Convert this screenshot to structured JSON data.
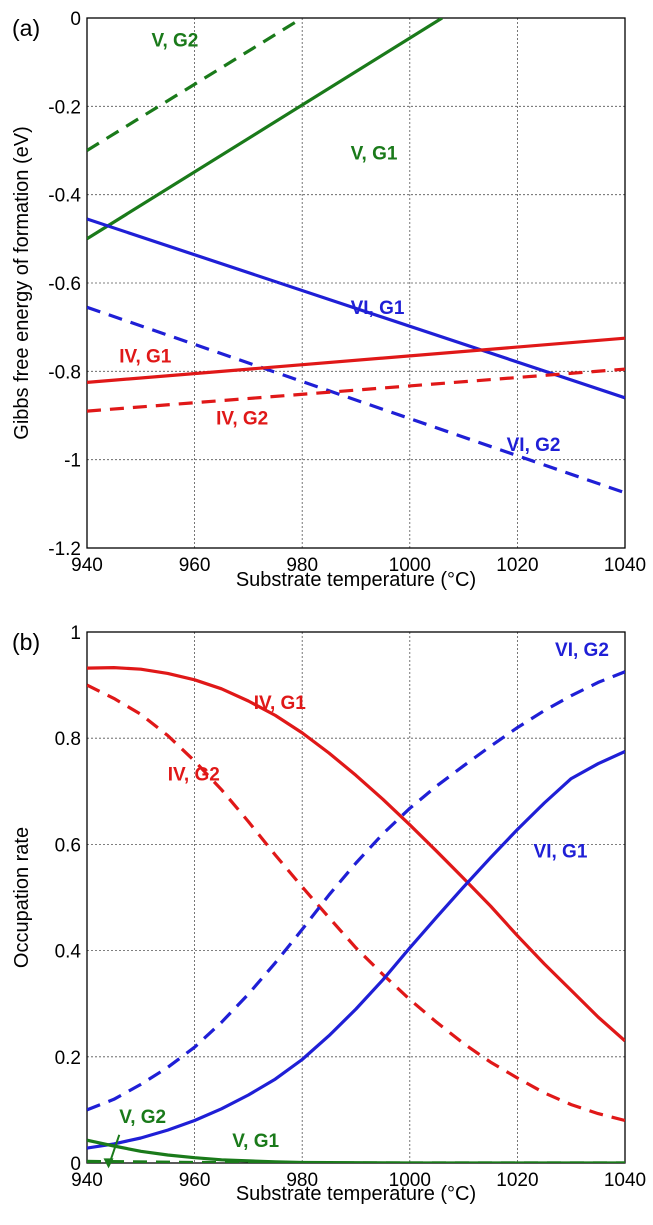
{
  "chart_data": [
    {
      "type": "line",
      "panel_label": "(a)",
      "xlabel": "Substrate temperature (°C)",
      "ylabel": "Gibbs free energy of formation (eV)",
      "xlim": [
        940,
        1040
      ],
      "ylim": [
        -1.2,
        0
      ],
      "xticks": [
        940,
        960,
        980,
        1000,
        1020,
        1040
      ],
      "yticks": [
        0,
        -0.2,
        -0.4,
        -0.6,
        -0.8,
        -1,
        -1.2
      ],
      "ytick_labels": [
        "0",
        "-0.2",
        "-0.4",
        "-0.6",
        "-0.8",
        "-1",
        "-1.2"
      ],
      "grid": true,
      "series": [
        {
          "name": "V, G2",
          "color": "#1a7a1a",
          "dash": true,
          "x": [
            940,
            980
          ],
          "y": [
            -0.3,
            0.0
          ]
        },
        {
          "name": "V, G1",
          "color": "#1a7a1a",
          "dash": false,
          "x": [
            940,
            1006
          ],
          "y": [
            -0.5,
            0.0
          ]
        },
        {
          "name": "VI, G1",
          "color": "#1f1fd6",
          "dash": false,
          "x": [
            940,
            1040
          ],
          "y": [
            -0.455,
            -0.86
          ]
        },
        {
          "name": "VI, G2",
          "color": "#1f1fd6",
          "dash": true,
          "x": [
            940,
            1040
          ],
          "y": [
            -0.655,
            -1.075
          ]
        },
        {
          "name": "IV, G1",
          "color": "#e01818",
          "dash": false,
          "x": [
            940,
            1040
          ],
          "y": [
            -0.825,
            -0.725
          ]
        },
        {
          "name": "IV, G2",
          "color": "#e01818",
          "dash": true,
          "x": [
            940,
            1040
          ],
          "y": [
            -0.89,
            -0.795
          ]
        }
      ],
      "annotations": [
        {
          "text": "V, G2",
          "color": "#1a7a1a",
          "x": 952,
          "y": -0.065
        },
        {
          "text": "V, G1",
          "color": "#1a7a1a",
          "x": 989,
          "y": -0.32
        },
        {
          "text": "VI, G1",
          "color": "#1f1fd6",
          "x": 989,
          "y": -0.67
        },
        {
          "text": "IV, G1",
          "color": "#e01818",
          "x": 946,
          "y": -0.78
        },
        {
          "text": "IV, G2",
          "color": "#e01818",
          "x": 964,
          "y": -0.92
        },
        {
          "text": "VI, G2",
          "color": "#1f1fd6",
          "x": 1018,
          "y": -0.98
        }
      ]
    },
    {
      "type": "line",
      "panel_label": "(b)",
      "xlabel": "Substrate temperature (°C)",
      "ylabel": "Occupation rate",
      "xlim": [
        940,
        1040
      ],
      "ylim": [
        0,
        1
      ],
      "xticks": [
        940,
        960,
        980,
        1000,
        1020,
        1040
      ],
      "yticks": [
        0,
        0.2,
        0.4,
        0.6,
        0.8,
        1
      ],
      "ytick_labels": [
        "0",
        "0.2",
        "0.4",
        "0.6",
        "0.8",
        "1"
      ],
      "grid": true,
      "series": [
        {
          "name": "IV, G1",
          "color": "#e01818",
          "dash": false,
          "x": [
            940,
            945,
            950,
            955,
            960,
            965,
            970,
            975,
            980,
            985,
            990,
            995,
            1000,
            1005,
            1010,
            1015,
            1020,
            1025,
            1030,
            1035,
            1040
          ],
          "y": [
            0.932,
            0.933,
            0.93,
            0.922,
            0.91,
            0.893,
            0.87,
            0.843,
            0.81,
            0.772,
            0.73,
            0.685,
            0.637,
            0.587,
            0.536,
            0.484,
            0.428,
            0.375,
            0.325,
            0.275,
            0.23
          ]
        },
        {
          "name": "IV, G2",
          "color": "#e01818",
          "dash": true,
          "x": [
            940,
            945,
            950,
            955,
            960,
            965,
            970,
            975,
            980,
            985,
            990,
            995,
            1000,
            1005,
            1010,
            1015,
            1020,
            1025,
            1030,
            1035,
            1040
          ],
          "y": [
            0.9,
            0.875,
            0.845,
            0.805,
            0.757,
            0.703,
            0.643,
            0.58,
            0.52,
            0.462,
            0.405,
            0.355,
            0.308,
            0.265,
            0.225,
            0.19,
            0.16,
            0.132,
            0.11,
            0.093,
            0.08
          ]
        },
        {
          "name": "VI, G2",
          "color": "#1f1fd6",
          "dash": true,
          "x": [
            940,
            945,
            950,
            955,
            960,
            965,
            970,
            975,
            980,
            985,
            990,
            995,
            1000,
            1005,
            1010,
            1015,
            1020,
            1025,
            1030,
            1035,
            1040
          ],
          "y": [
            0.1,
            0.12,
            0.148,
            0.18,
            0.218,
            0.265,
            0.318,
            0.377,
            0.44,
            0.505,
            0.565,
            0.62,
            0.668,
            0.71,
            0.748,
            0.785,
            0.82,
            0.852,
            0.88,
            0.905,
            0.925
          ]
        },
        {
          "name": "VI, G1",
          "color": "#1f1fd6",
          "dash": false,
          "x": [
            940,
            945,
            950,
            955,
            960,
            965,
            970,
            975,
            980,
            985,
            990,
            995,
            1000,
            1005,
            1010,
            1015,
            1020,
            1025,
            1030,
            1035,
            1040
          ],
          "y": [
            0.028,
            0.036,
            0.047,
            0.062,
            0.08,
            0.102,
            0.128,
            0.158,
            0.195,
            0.24,
            0.29,
            0.345,
            0.405,
            0.463,
            0.52,
            0.575,
            0.628,
            0.678,
            0.724,
            0.752,
            0.775
          ]
        },
        {
          "name": "V, G1",
          "color": "#1a7a1a",
          "dash": false,
          "x": [
            940,
            945,
            950,
            955,
            960,
            965,
            970,
            975,
            980,
            990,
            1000,
            1020,
            1040
          ],
          "y": [
            0.043,
            0.032,
            0.022,
            0.015,
            0.01,
            0.006,
            0.004,
            0.002,
            0.001,
            0.0005,
            0,
            0,
            0
          ]
        },
        {
          "name": "V, G2",
          "color": "#1a7a1a",
          "dash": true,
          "x": [
            940,
            960,
            980,
            1000,
            1020,
            1040
          ],
          "y": [
            0.003,
            0.001,
            0,
            0,
            0,
            0
          ]
        }
      ],
      "annotations": [
        {
          "text": "IV, G1",
          "color": "#e01818",
          "x": 971,
          "y": 0.855
        },
        {
          "text": "IV, G2",
          "color": "#e01818",
          "x": 955,
          "y": 0.72
        },
        {
          "text": "VI, G2",
          "color": "#1f1fd6",
          "x": 1027,
          "y": 0.955
        },
        {
          "text": "VI, G1",
          "color": "#1f1fd6",
          "x": 1023,
          "y": 0.575
        },
        {
          "text": "V, G2",
          "color": "#1a7a1a",
          "x": 946,
          "y": 0.075
        },
        {
          "text": "V, G1",
          "color": "#1a7a1a",
          "x": 967,
          "y": 0.03
        }
      ],
      "arrow": {
        "color": "#1a7a1a",
        "from": [
          946,
          0.053
        ],
        "to": [
          944,
          0.005
        ]
      }
    }
  ]
}
